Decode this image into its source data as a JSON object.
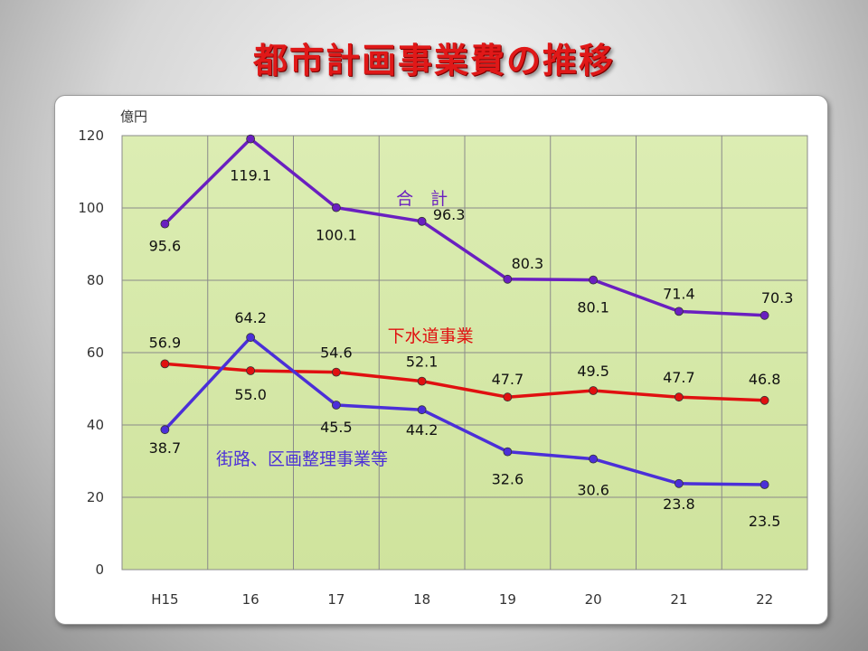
{
  "title": "都市計画事業費の推移",
  "chart_data": {
    "type": "line",
    "y_unit": "億円",
    "ylim": [
      0,
      120
    ],
    "y_ticks": [
      "0",
      "20",
      "40",
      "60",
      "80",
      "100",
      "120"
    ],
    "categories": [
      "H15",
      "16",
      "17",
      "18",
      "19",
      "20",
      "21",
      "22"
    ],
    "grid": true,
    "plot_background": "#d5e8a8",
    "series": [
      {
        "name": "合　計",
        "color": "#6a1fc0",
        "values": [
          95.6,
          119.1,
          100.1,
          96.3,
          80.3,
          80.1,
          71.4,
          70.3
        ],
        "labels": [
          "95.6",
          "119.1",
          "100.1",
          "96.3",
          "80.3",
          "80.1",
          "71.4",
          "70.3"
        ]
      },
      {
        "name": "下水道事業",
        "color": "#e01010",
        "values": [
          56.9,
          55.0,
          54.6,
          52.1,
          47.7,
          49.5,
          47.7,
          46.8
        ],
        "labels": [
          "56.9",
          "55.0",
          "54.6",
          "52.1",
          "47.7",
          "49.5",
          "47.7",
          "46.8"
        ]
      },
      {
        "name": "街路、区画整理事業等",
        "color": "#4b2fd8",
        "values": [
          38.7,
          64.2,
          45.5,
          44.2,
          32.6,
          30.6,
          23.8,
          23.5
        ],
        "labels": [
          "38.7",
          "64.2",
          "45.5",
          "44.2",
          "32.6",
          "30.6",
          "23.8",
          "23.5"
        ]
      }
    ]
  }
}
